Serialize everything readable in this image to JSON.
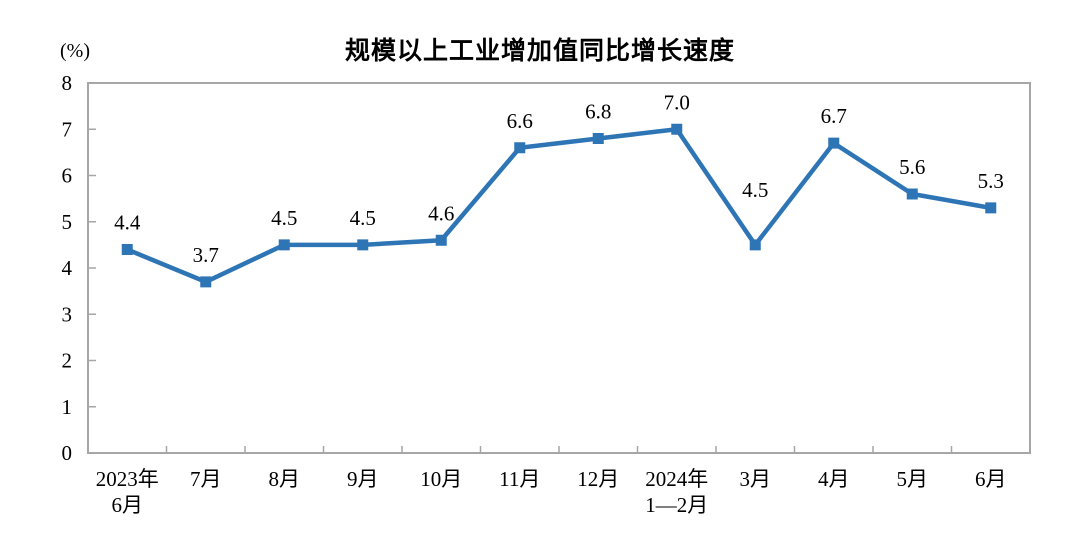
{
  "chart_data": {
    "type": "line",
    "title": "规模以上工业增加值同比增长速度",
    "unit_label": "(%)",
    "categories": [
      "2023年\n6月",
      "7月",
      "8月",
      "9月",
      "10月",
      "11月",
      "12月",
      "2024年\n1—2月",
      "3月",
      "4月",
      "5月",
      "6月"
    ],
    "values": [
      4.4,
      3.7,
      4.5,
      4.5,
      4.6,
      6.6,
      6.8,
      7.0,
      4.5,
      6.7,
      5.6,
      5.3
    ],
    "value_labels": [
      "4.4",
      "3.7",
      "4.5",
      "4.5",
      "4.6",
      "6.6",
      "6.8",
      "7.0",
      "4.5",
      "6.7",
      "5.6",
      "5.3"
    ],
    "xlabel": "",
    "ylabel": "(%)",
    "ylim": [
      0,
      8
    ],
    "y_ticks": [
      0,
      1,
      2,
      3,
      4,
      5,
      6,
      7,
      8
    ],
    "grid": false,
    "legend_position": "none",
    "line_color": "#2E75B6",
    "marker_shape": "square",
    "axis_border_color": "#A6A6A6",
    "text_color": "#000000"
  }
}
